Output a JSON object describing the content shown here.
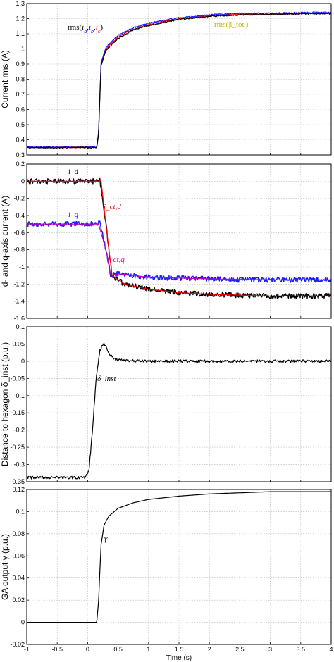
{
  "chart_data": [
    {
      "type": "line",
      "ylabel": "Current rms (A)",
      "xlim": [
        -1,
        4
      ],
      "ylim": [
        0.3,
        1.3
      ],
      "yticks": [
        "0.3",
        "0.4",
        "0.5",
        "0.6",
        "0.7",
        "0.8",
        "0.9",
        "1",
        "1.1",
        "1.2",
        "1.3"
      ],
      "grid": true,
      "annotations": [
        {
          "text": "rms(",
          "extra": [
            "i",
            "a",
            ",",
            "i",
            "b",
            ",",
            "i",
            "c",
            ")"
          ],
          "color": "#000000"
        },
        {
          "text": "rms(|i_tot|)",
          "color": "#c8b400"
        }
      ],
      "series": [
        {
          "color": "#ff0000",
          "points": [
            [
              -1,
              0.35
            ],
            [
              0.15,
              0.35
            ],
            [
              0.18,
              0.45
            ],
            [
              0.22,
              0.9
            ],
            [
              0.3,
              1.0
            ],
            [
              0.5,
              1.08
            ],
            [
              0.75,
              1.13
            ],
            [
              1.0,
              1.16
            ],
            [
              1.5,
              1.2
            ],
            [
              2.0,
              1.22
            ],
            [
              2.5,
              1.23
            ],
            [
              3.0,
              1.23
            ],
            [
              3.5,
              1.235
            ],
            [
              4.0,
              1.235
            ]
          ]
        },
        {
          "color": "#1a1aff",
          "points": [
            [
              -1,
              0.352
            ],
            [
              0.15,
              0.352
            ],
            [
              0.18,
              0.46
            ],
            [
              0.22,
              0.91
            ],
            [
              0.3,
              1.01
            ],
            [
              0.5,
              1.09
            ],
            [
              0.75,
              1.14
            ],
            [
              1.0,
              1.17
            ],
            [
              1.5,
              1.205
            ],
            [
              2.0,
              1.225
            ],
            [
              2.5,
              1.235
            ],
            [
              3.0,
              1.235
            ],
            [
              3.5,
              1.24
            ],
            [
              4.0,
              1.24
            ]
          ]
        },
        {
          "color": "#000000",
          "points": [
            [
              -1,
              0.348
            ],
            [
              0.15,
              0.348
            ],
            [
              0.18,
              0.44
            ],
            [
              0.22,
              0.89
            ],
            [
              0.3,
              0.99
            ],
            [
              0.5,
              1.07
            ],
            [
              0.75,
              1.125
            ],
            [
              1.0,
              1.155
            ],
            [
              1.5,
              1.195
            ],
            [
              2.0,
              1.215
            ],
            [
              2.5,
              1.225
            ],
            [
              3.0,
              1.228
            ],
            [
              3.5,
              1.232
            ],
            [
              4.0,
              1.232
            ]
          ]
        }
      ]
    },
    {
      "type": "line",
      "ylabel": "d- and q-axis current (A)",
      "xlim": [
        -1,
        4
      ],
      "ylim": [
        -1.6,
        0.2
      ],
      "yticks": [
        "-1.6",
        "-1.4",
        "-1.2",
        "-1",
        "-0.8",
        "-0.6",
        "-0.4",
        "-0.2",
        "0",
        "0.2"
      ],
      "grid": true,
      "annotations": [
        {
          "text": "i_d",
          "color": "#000000"
        },
        {
          "text": "i_q",
          "color": "#1a1aff"
        },
        {
          "text": "i_ct,d",
          "color": "#d00000"
        },
        {
          "text": "i_ct,q",
          "color": "#c000c0"
        }
      ],
      "series": [
        {
          "name": "i_d",
          "color": "#000000",
          "band": 0.03,
          "points": [
            [
              -1,
              0
            ],
            [
              0.1,
              0
            ],
            [
              0.2,
              0.02
            ],
            [
              0.3,
              -0.5
            ],
            [
              0.4,
              -1.1
            ],
            [
              0.6,
              -1.2
            ],
            [
              1.0,
              -1.26
            ],
            [
              1.5,
              -1.3
            ],
            [
              2.0,
              -1.32
            ],
            [
              2.5,
              -1.33
            ],
            [
              3.0,
              -1.34
            ],
            [
              3.5,
              -1.34
            ],
            [
              4.0,
              -1.34
            ]
          ]
        },
        {
          "name": "i_q",
          "color": "#1a1aff",
          "band": 0.03,
          "points": [
            [
              -1,
              -0.5
            ],
            [
              0.1,
              -0.5
            ],
            [
              0.2,
              -0.48
            ],
            [
              0.3,
              -0.8
            ],
            [
              0.38,
              -1.1
            ],
            [
              0.5,
              -1.08
            ],
            [
              1.0,
              -1.12
            ],
            [
              1.5,
              -1.13
            ],
            [
              2.0,
              -1.14
            ],
            [
              2.5,
              -1.15
            ],
            [
              3.0,
              -1.15
            ],
            [
              3.5,
              -1.15
            ],
            [
              4.0,
              -1.15
            ]
          ]
        },
        {
          "name": "i_ct,d",
          "color": "#ff0000",
          "band": 0,
          "points": [
            [
              -1,
              0
            ],
            [
              0.18,
              0
            ],
            [
              0.22,
              0.01
            ],
            [
              0.3,
              -0.5
            ],
            [
              0.4,
              -1.1
            ],
            [
              0.6,
              -1.2
            ],
            [
              1.0,
              -1.26
            ],
            [
              1.5,
              -1.3
            ],
            [
              2.0,
              -1.32
            ],
            [
              3.0,
              -1.34
            ],
            [
              4.0,
              -1.34
            ]
          ]
        },
        {
          "name": "i_ct,q",
          "color": "#c000c0",
          "band": 0,
          "points": [
            [
              -1,
              -0.5
            ],
            [
              0.18,
              -0.5
            ],
            [
              0.3,
              -0.8
            ],
            [
              0.38,
              -1.1
            ],
            [
              0.5,
              -1.08
            ],
            [
              1.0,
              -1.12
            ],
            [
              2.0,
              -1.14
            ],
            [
              3.0,
              -1.15
            ],
            [
              4.0,
              -1.15
            ]
          ]
        }
      ]
    },
    {
      "type": "line",
      "ylabel": "Distance to hexagon δ_inst (p.u.)",
      "xlim": [
        -1,
        4
      ],
      "ylim": [
        -0.35,
        0.1
      ],
      "yticks": [
        "-0.35",
        "-0.3",
        "-0.25",
        "-0.2",
        "-0.15",
        "-0.1",
        "-0.05",
        "0",
        "0.05",
        "0.1"
      ],
      "grid": true,
      "annotations": [
        {
          "text": "δ_inst",
          "color": "#000000"
        }
      ],
      "series": [
        {
          "name": "δ_inst",
          "color": "#000000",
          "band": 0.004,
          "points": [
            [
              -1,
              -0.338
            ],
            [
              -0.05,
              -0.338
            ],
            [
              0.02,
              -0.32
            ],
            [
              0.08,
              -0.2
            ],
            [
              0.14,
              -0.05
            ],
            [
              0.2,
              0.03
            ],
            [
              0.25,
              0.05
            ],
            [
              0.3,
              0.045
            ],
            [
              0.35,
              0.02
            ],
            [
              0.45,
              0.005
            ],
            [
              0.6,
              0.002
            ],
            [
              1.0,
              0.0
            ],
            [
              2.0,
              0.0
            ],
            [
              3.0,
              0.0
            ],
            [
              4.0,
              0.0
            ]
          ]
        }
      ]
    },
    {
      "type": "line",
      "ylabel": "GA output γ (p.u.)",
      "xlabel": "Time (s)",
      "xlim": [
        -1,
        4
      ],
      "ylim": [
        -0.02,
        0.12
      ],
      "yticks": [
        "-0.02",
        "0",
        "0.02",
        "0.04",
        "0.06",
        "0.08",
        "0.1",
        "0.12"
      ],
      "xticks": [
        "-1",
        "-0.5",
        "0",
        "0.5",
        "1",
        "1.5",
        "2",
        "2.5",
        "3",
        "3.5",
        "4"
      ],
      "grid": true,
      "annotations": [
        {
          "text": "γ",
          "color": "#000000"
        }
      ],
      "series": [
        {
          "name": "γ",
          "color": "#000000",
          "band": 0,
          "points": [
            [
              -1,
              0
            ],
            [
              0.15,
              0
            ],
            [
              0.18,
              0.02
            ],
            [
              0.22,
              0.07
            ],
            [
              0.27,
              0.088
            ],
            [
              0.35,
              0.096
            ],
            [
              0.5,
              0.103
            ],
            [
              0.75,
              0.108
            ],
            [
              1.0,
              0.111
            ],
            [
              1.5,
              0.114
            ],
            [
              2.0,
              0.116
            ],
            [
              2.5,
              0.117
            ],
            [
              3.0,
              0.118
            ],
            [
              3.5,
              0.118
            ],
            [
              4.0,
              0.118
            ]
          ]
        }
      ]
    }
  ]
}
